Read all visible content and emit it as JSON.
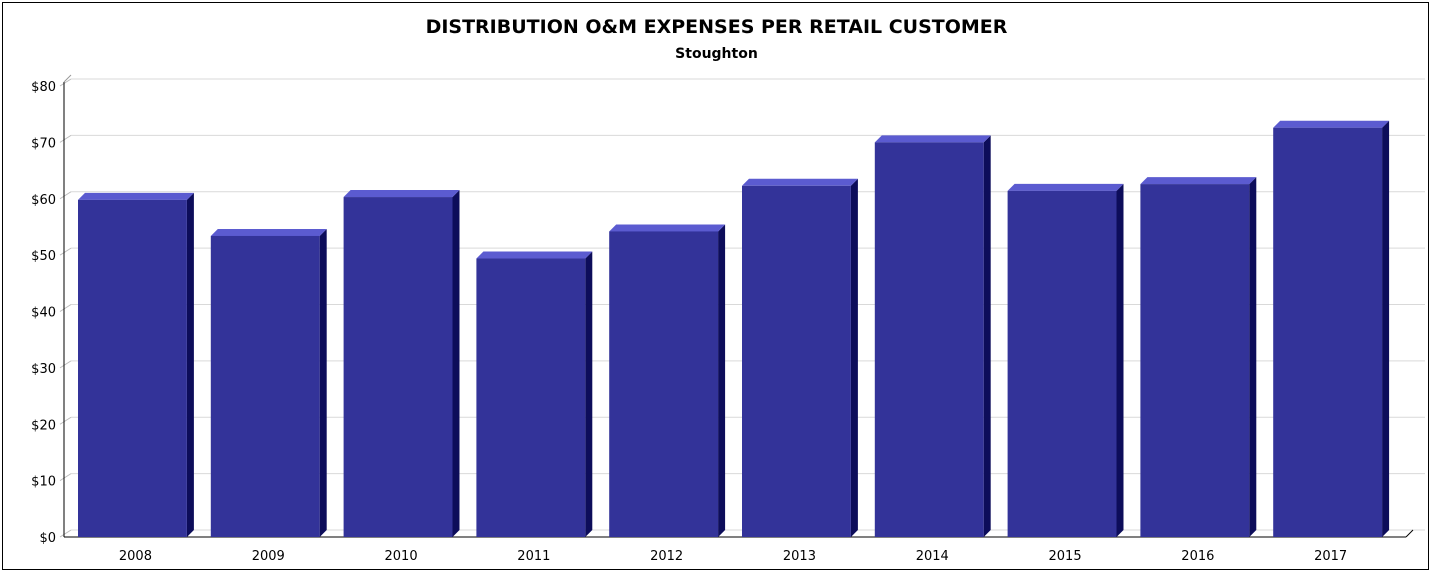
{
  "chart_data": {
    "type": "bar",
    "title": "DISTRIBUTION O&M EXPENSES PER RETAIL CUSTOMER",
    "subtitle": "Stoughton",
    "categories": [
      "2008",
      "2009",
      "2010",
      "2011",
      "2012",
      "2013",
      "2014",
      "2015",
      "2016",
      "2017"
    ],
    "values": [
      59.8,
      53.4,
      60.3,
      49.4,
      54.2,
      62.3,
      70.0,
      61.4,
      62.6,
      72.6
    ],
    "y_ticks": [
      "$0",
      "$10",
      "$20",
      "$30",
      "$40",
      "$50",
      "$60",
      "$70",
      "$80"
    ],
    "ylim": [
      0,
      80
    ],
    "grid": true,
    "legend": "none",
    "colors": {
      "bar_front": "#333399",
      "bar_top": "#5b5bd0",
      "bar_side": "#0d0d5a",
      "grid": "#d9d9d9"
    }
  }
}
